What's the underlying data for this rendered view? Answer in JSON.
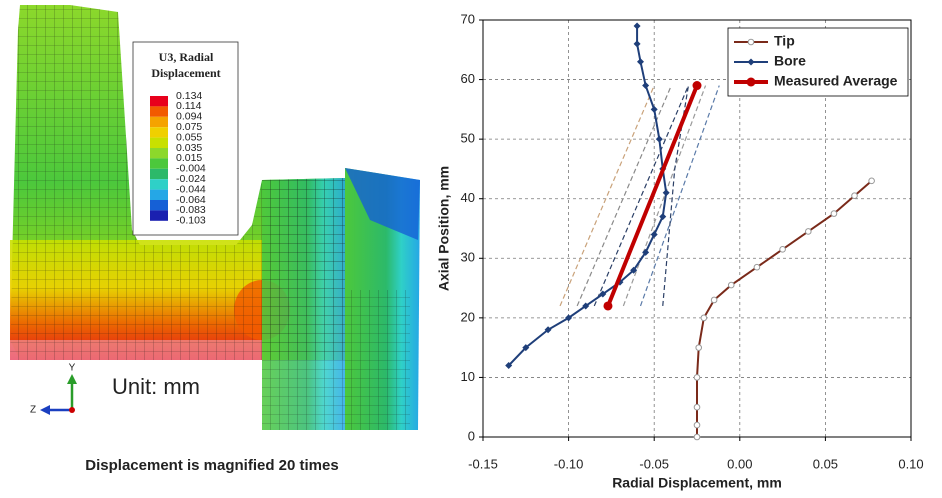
{
  "contour_panel": {
    "legend_title": [
      "U3, Radial",
      "Displacement"
    ],
    "levels": [
      "0.134",
      "0.114",
      "0.094",
      "0.075",
      "0.055",
      "0.035",
      "0.015",
      "-0.004",
      "-0.024",
      "-0.044",
      "-0.064",
      "-0.083",
      "-0.103"
    ],
    "level_colors": [
      "#e8001c",
      "#f25a00",
      "#f5a300",
      "#f0d000",
      "#c8e000",
      "#8cd82b",
      "#4cc83c",
      "#2cb96a",
      "#2fd0c7",
      "#25a7e6",
      "#1560d6",
      "#1a20b0"
    ],
    "unit_note": "Unit: mm",
    "triad": {
      "y": "Y",
      "z": "Z"
    },
    "caption": "Displacement is magnified 20 times"
  },
  "chart_data": {
    "type": "line",
    "xlabel": "Radial Displacement, mm",
    "ylabel": "Axial Position, mm",
    "xlim": [
      -0.15,
      0.1
    ],
    "ylim": [
      0,
      70
    ],
    "xticks": [
      -0.15,
      {
        "value": -0.1,
        "label": "-0.10"
      },
      -0.05,
      {
        "value": 0,
        "label": "0.00"
      },
      0.05,
      {
        "value": 0.1,
        "label": "0.10"
      }
    ],
    "yticks": [
      0,
      10,
      20,
      30,
      40,
      50,
      60,
      70
    ],
    "grid": true,
    "legend": "upper right",
    "series": [
      {
        "color": "#c9a27a",
        "dash": true,
        "x": [
          -0.105,
          -0.05
        ],
        "y": [
          22,
          59
        ]
      },
      {
        "color": "#8a8a8a",
        "dash": true,
        "x": [
          -0.095,
          -0.04
        ],
        "y": [
          22,
          59
        ]
      },
      {
        "color": "#2b3f66",
        "dash": true,
        "x": [
          -0.085,
          -0.03
        ],
        "y": [
          22,
          59
        ]
      },
      {
        "color": "#9a9a9a",
        "dash": true,
        "x": [
          -0.068,
          -0.02
        ],
        "y": [
          22,
          59
        ]
      },
      {
        "color": "#5a7aa8",
        "dash": true,
        "x": [
          -0.058,
          -0.012
        ],
        "y": [
          22,
          59
        ]
      },
      {
        "color": "#2b3f66",
        "dash": true,
        "x": [
          -0.045,
          -0.038,
          -0.03
        ],
        "y": [
          22,
          45,
          59
        ]
      },
      {
        "name": "Tip",
        "color": "#7a2a1a",
        "marker": "circle",
        "x": [
          -0.025,
          -0.025,
          -0.025,
          -0.025,
          -0.024,
          -0.021,
          -0.015,
          -0.005,
          0.01,
          0.025,
          0.04,
          0.055,
          0.067,
          0.077
        ],
        "y": [
          0,
          2,
          5,
          10,
          15,
          20,
          23,
          25.5,
          28.5,
          31.5,
          34.5,
          37.5,
          40.5,
          43
        ]
      },
      {
        "name": "Bore",
        "color": "#1f3f7a",
        "marker": "diamond",
        "x": [
          -0.135,
          -0.125,
          -0.112,
          -0.1,
          -0.09,
          -0.08,
          -0.07,
          -0.062,
          -0.055,
          -0.05,
          -0.045,
          -0.043,
          -0.045,
          -0.047,
          -0.05,
          -0.055,
          -0.058,
          -0.06,
          -0.06
        ],
        "y": [
          12,
          15,
          18,
          20,
          22,
          24,
          26,
          28,
          31,
          34,
          37,
          41,
          45,
          50,
          55,
          59,
          63,
          66,
          69
        ]
      },
      {
        "name": "Measured Average",
        "color": "#c00000",
        "marker": "dot",
        "width": 4,
        "x": [
          -0.077,
          -0.025
        ],
        "y": [
          22,
          59
        ]
      }
    ]
  }
}
